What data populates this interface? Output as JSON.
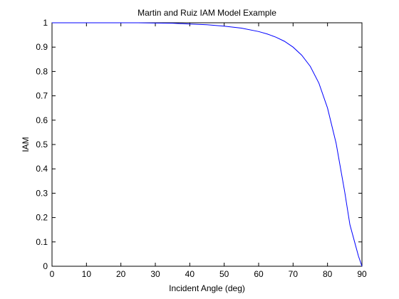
{
  "chart_data": {
    "type": "line",
    "title": "Martin and Ruiz IAM Model Example",
    "xlabel": "Incident Angle (deg)",
    "ylabel": "IAM",
    "xlim": [
      0,
      90
    ],
    "ylim": [
      0,
      1
    ],
    "xticks": [
      0,
      10,
      20,
      30,
      40,
      50,
      60,
      70,
      80,
      90
    ],
    "yticks": [
      0,
      0.1,
      0.2,
      0.3,
      0.4,
      0.5,
      0.6,
      0.7,
      0.8,
      0.9,
      1
    ],
    "xtick_labels": [
      "0",
      "10",
      "20",
      "30",
      "40",
      "50",
      "60",
      "70",
      "80",
      "90"
    ],
    "ytick_labels": [
      "0",
      "0.1",
      "0.2",
      "0.3",
      "0.4",
      "0.5",
      "0.6",
      "0.7",
      "0.8",
      "0.9",
      "1"
    ],
    "grid": false,
    "series": [
      {
        "color": "#0000ff",
        "x": [
          0,
          5,
          10,
          15,
          20,
          25,
          30,
          35,
          40,
          45,
          50,
          55,
          60,
          62.5,
          65,
          67.5,
          70,
          72.5,
          75,
          77.5,
          80,
          82.5,
          85,
          86.5,
          88,
          89,
          90
        ],
        "y": [
          1.0,
          1.0,
          1.0,
          1.0,
          1.0,
          1.0,
          0.999,
          0.998,
          0.995,
          0.992,
          0.986,
          0.978,
          0.964,
          0.954,
          0.941,
          0.924,
          0.9,
          0.867,
          0.821,
          0.752,
          0.65,
          0.505,
          0.305,
          0.171,
          0.093,
          0.041,
          0.0
        ]
      }
    ]
  }
}
